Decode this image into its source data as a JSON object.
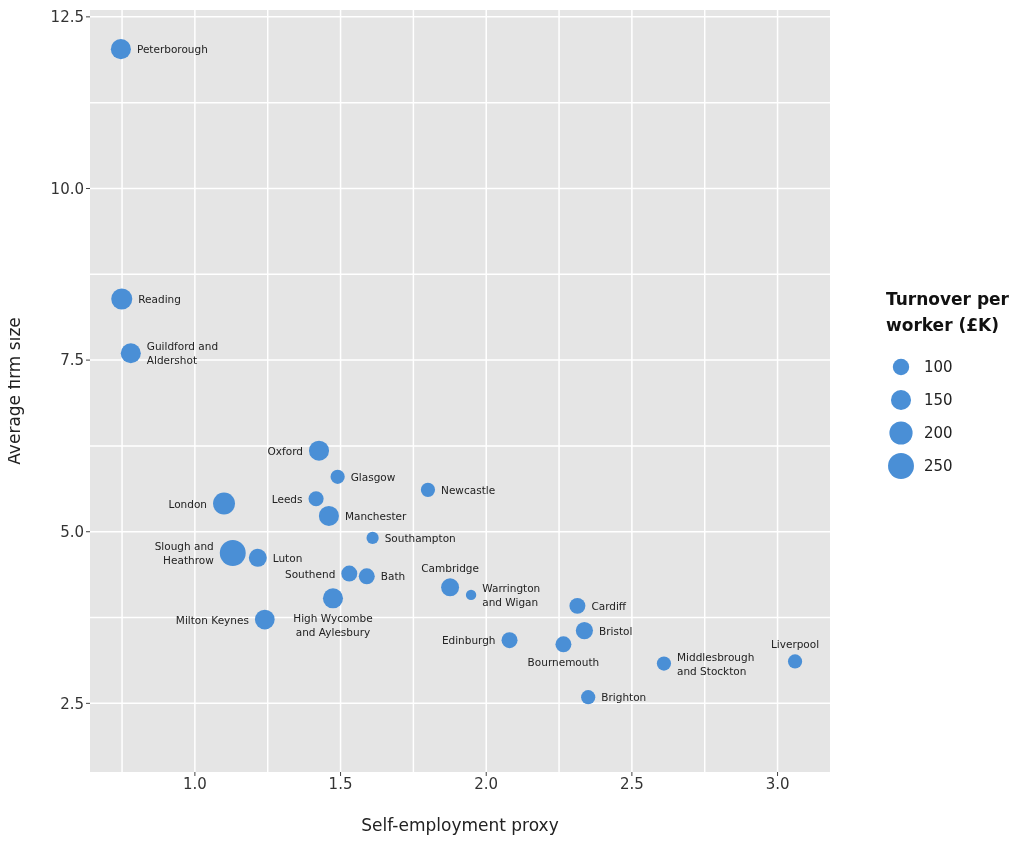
{
  "chart_data": {
    "type": "bubble",
    "xlabel": "Self-employment proxy",
    "ylabel": "Average firm size",
    "legend_title": "Turnover per worker (£K)",
    "grid": true,
    "color": "#4a8fd6",
    "xlim": [
      0.64,
      3.18
    ],
    "xticks": [
      {
        "value": 1,
        "label": "1.0"
      },
      1.5,
      {
        "value": 2,
        "label": "2.0"
      },
      2.5,
      {
        "value": 3,
        "label": "3.0"
      }
    ],
    "ylim": [
      1.5,
      12.6
    ],
    "yticks": [
      2.5,
      {
        "value": 5,
        "label": "5.0"
      },
      7.5,
      {
        "value": 10,
        "label": "10.0"
      },
      12.5
    ],
    "x": [
      0.746,
      0.749,
      0.78,
      1.426,
      1.49,
      1.8,
      1.1,
      1.416,
      1.46,
      1.61,
      1.13,
      1.216,
      1.53,
      1.59,
      1.876,
      1.948,
      1.474,
      2.313,
      1.24,
      2.337,
      2.08,
      2.265,
      2.61,
      3.06,
      2.35
    ],
    "values": [
      12.03,
      8.39,
      7.6,
      6.18,
      5.8,
      5.61,
      5.41,
      5.48,
      5.23,
      4.91,
      4.69,
      4.62,
      4.39,
      4.35,
      4.19,
      4.08,
      4.03,
      3.92,
      3.72,
      3.56,
      3.42,
      3.36,
      3.08,
      3.11,
      2.59
    ],
    "sizes": [
      150,
      165,
      150,
      150,
      75,
      75,
      180,
      85,
      150,
      55,
      250,
      120,
      95,
      95,
      120,
      40,
      150,
      95,
      145,
      110,
      95,
      95,
      75,
      75,
      75
    ],
    "size_legend": [
      100,
      150,
      200,
      250
    ],
    "annotations": [
      {
        "text": "Peterborough",
        "x": 0.746,
        "y": 12.03
      },
      {
        "text": "Reading",
        "x": 0.749,
        "y": 8.39
      },
      {
        "text": "Guildford and Aldershot",
        "x": 0.78,
        "y": 7.6
      },
      {
        "text": "Oxford",
        "x": 1.426,
        "y": 6.18
      },
      {
        "text": "Glasgow",
        "x": 1.49,
        "y": 5.8
      },
      {
        "text": "Newcastle",
        "x": 1.8,
        "y": 5.61
      },
      {
        "text": "London",
        "x": 1.1,
        "y": 5.41
      },
      {
        "text": "Leeds",
        "x": 1.416,
        "y": 5.48
      },
      {
        "text": "Manchester",
        "x": 1.46,
        "y": 5.23
      },
      {
        "text": "Southampton",
        "x": 1.61,
        "y": 4.91
      },
      {
        "text": "Slough and Heathrow",
        "x": 1.13,
        "y": 4.69
      },
      {
        "text": "Luton",
        "x": 1.216,
        "y": 4.62
      },
      {
        "text": "Southend",
        "x": 1.53,
        "y": 4.39
      },
      {
        "text": "Bath",
        "x": 1.59,
        "y": 4.35
      },
      {
        "text": "Cambridge",
        "x": 1.876,
        "y": 4.19
      },
      {
        "text": "Warrington and Wigan",
        "x": 1.948,
        "y": 4.08
      },
      {
        "text": "High Wycombe and Aylesbury",
        "x": 1.474,
        "y": 4.03
      },
      {
        "text": "Cardiff",
        "x": 2.313,
        "y": 3.92
      },
      {
        "text": "Milton Keynes",
        "x": 1.24,
        "y": 3.72
      },
      {
        "text": "Bristol",
        "x": 2.337,
        "y": 3.56
      },
      {
        "text": "Edinburgh",
        "x": 2.08,
        "y": 3.42
      },
      {
        "text": "Bournemouth",
        "x": 2.265,
        "y": 3.36
      },
      {
        "text": "Middlesbrough and Stockton",
        "x": 2.61,
        "y": 3.08
      },
      {
        "text": "Liverpool",
        "x": 3.06,
        "y": 3.11
      },
      {
        "text": "Brighton",
        "x": 2.35,
        "y": 2.59
      }
    ]
  }
}
